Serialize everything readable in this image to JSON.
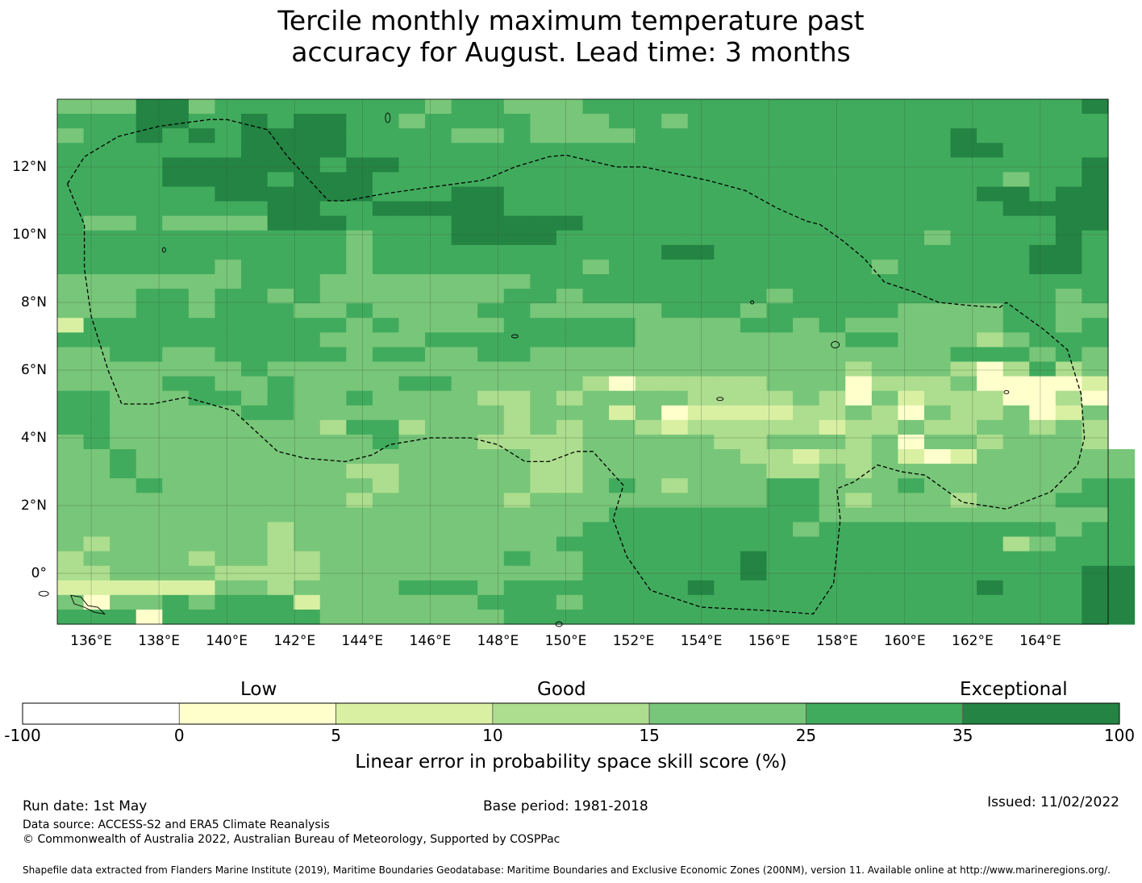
{
  "title": {
    "line1": "Tercile monthly maximum temperature past",
    "line2": "accuracy for August. Lead time: 3 months"
  },
  "map": {
    "lon_labels": [
      "136°E",
      "138°E",
      "140°E",
      "142°E",
      "144°E",
      "146°E",
      "148°E",
      "150°E",
      "152°E",
      "154°E",
      "156°E",
      "158°E",
      "160°E",
      "162°E",
      "164°E"
    ],
    "lat_labels": [
      "12°N",
      "10°N",
      "8°N",
      "6°N",
      "4°N",
      "2°N",
      "0°"
    ],
    "lon_range": [
      135.0,
      166.0
    ],
    "lat_range": [
      -1.5,
      14.0
    ],
    "grid": true
  },
  "colorbar": {
    "categories": [
      "Low",
      "Good",
      "Exceptional"
    ],
    "ticks": [
      "-100",
      "0",
      "5",
      "10",
      "15",
      "25",
      "35",
      "100"
    ],
    "colors": [
      "#ffffff",
      "#ffffcc",
      "#d9f0a3",
      "#addd8e",
      "#78c679",
      "#41ab5d",
      "#238443"
    ],
    "title": "Linear error in probability space skill score (%)"
  },
  "footer": {
    "run_date": "Run date: 1st May",
    "base_period": "Base period: 1981-2018",
    "issued": "Issued: 11/02/2022",
    "data_source": "Data source: ACCESS-S2 and ERA5 Climate Reanalysis",
    "copyright": "© Commonwealth of Australia 2022, Australian Bureau of Meteorology, Supported by COSPPac",
    "shapefile": "Shapefile data extracted from Flanders Marine Institute (2019), Maritime Boundaries Geodatabase: Maritime Boundaries and Exclusive Economic Zones (200NM), version 11. Available online at http://www.marineregions.org/."
  }
}
